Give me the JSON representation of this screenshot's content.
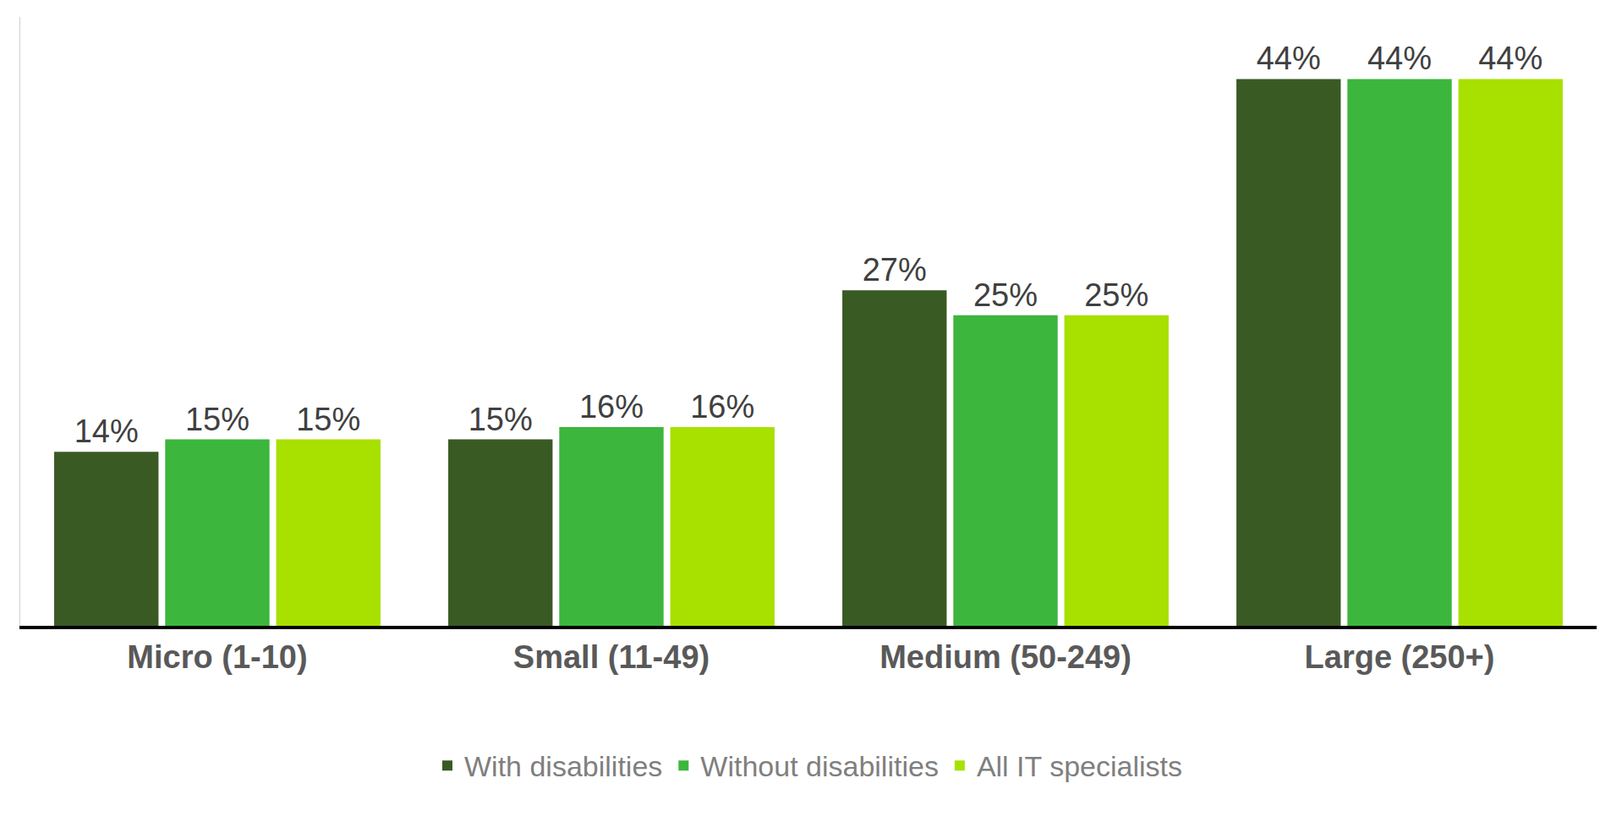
{
  "chart_data": {
    "type": "bar",
    "categories": [
      "Micro (1-10)",
      "Small (11-49)",
      "Medium (50-249)",
      "Large (250+)"
    ],
    "series": [
      {
        "name": "With disabilities",
        "color": "#3a5a24",
        "values": [
          14,
          15,
          27,
          44
        ],
        "value_labels": [
          "14%",
          "15%",
          "27%",
          "44%"
        ]
      },
      {
        "name": "Without disabilities",
        "color": "#3cb63c",
        "values": [
          15,
          16,
          25,
          44
        ],
        "value_labels": [
          "15%",
          "16%",
          "25%",
          "44%"
        ]
      },
      {
        "name": "All IT specialists",
        "color": "#a8e000",
        "values": [
          15,
          16,
          25,
          44
        ],
        "value_labels": [
          "15%",
          "16%",
          "25%",
          "44%"
        ]
      }
    ],
    "ylim": [
      0,
      49
    ],
    "yticks": [],
    "grid": false,
    "legend": "bottom",
    "data_labels": true,
    "tick_labels": "x"
  }
}
